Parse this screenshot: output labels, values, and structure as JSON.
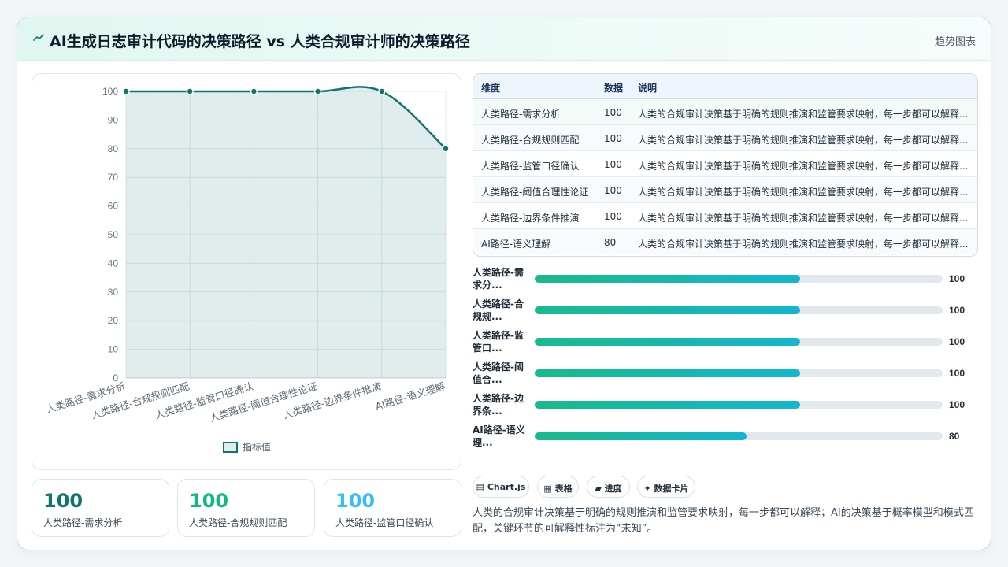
{
  "header": {
    "title": "AI生成日志审计代码的决策路径 vs 人类合规审计师的决策路径",
    "tag": "趋势图表",
    "icon": "sparkline-icon"
  },
  "colors": {
    "accent": "#0f766e",
    "accent_green": "#10b981",
    "accent_blue": "#38bdf8",
    "bar_start": "#1ab98a",
    "bar_end": "#13b6cf"
  },
  "chart_data": {
    "type": "line",
    "categories": [
      "人类路径-需求分析",
      "人类路径-合规规则匹配",
      "人类路径-监管口径确认",
      "人类路径-阈值合理性论证",
      "人类路径-边界条件推演",
      "AI路径-语义理解"
    ],
    "series": [
      {
        "name": "指标值",
        "values": [
          100,
          100,
          100,
          100,
          100,
          80
        ]
      }
    ],
    "ylim": [
      0,
      100
    ],
    "yticks": [
      0,
      10,
      20,
      30,
      40,
      50,
      60,
      70,
      80,
      90,
      100
    ],
    "fill": true,
    "grid": true,
    "legend": "bottom"
  },
  "table": {
    "headers": [
      "维度",
      "数据",
      "说明"
    ],
    "rows": [
      {
        "dim": "人类路径-需求分析",
        "value": "100",
        "note": "人类的合规审计决策基于明确的规则推演和监管要求映射，每一步都可以解释..."
      },
      {
        "dim": "人类路径-合规规则匹配",
        "value": "100",
        "note": "人类的合规审计决策基于明确的规则推演和监管要求映射，每一步都可以解释..."
      },
      {
        "dim": "人类路径-监管口径确认",
        "value": "100",
        "note": "人类的合规审计决策基于明确的规则推演和监管要求映射，每一步都可以解释..."
      },
      {
        "dim": "人类路径-阈值合理性论证",
        "value": "100",
        "note": "人类的合规审计决策基于明确的规则推演和监管要求映射，每一步都可以解释..."
      },
      {
        "dim": "人类路径-边界条件推演",
        "value": "100",
        "note": "人类的合规审计决策基于明确的规则推演和监管要求映射，每一步都可以解释..."
      },
      {
        "dim": "AI路径-语义理解",
        "value": "80",
        "note": "人类的合规审计决策基于明确的规则推演和监管要求映射，每一步都可以解释..."
      }
    ]
  },
  "progress": [
    {
      "label": "人类路径-需求分...",
      "value": 100,
      "fraction": 0.65
    },
    {
      "label": "人类路径-合规规...",
      "value": 100,
      "fraction": 0.65
    },
    {
      "label": "人类路径-监管口...",
      "value": 100,
      "fraction": 0.65
    },
    {
      "label": "人类路径-阈值合...",
      "value": 100,
      "fraction": 0.65
    },
    {
      "label": "人类路径-边界条...",
      "value": 100,
      "fraction": 0.65
    },
    {
      "label": "AI路径-语义理...",
      "value": 80,
      "fraction": 0.52
    }
  ],
  "kpis": [
    {
      "value": "100",
      "label": "人类路径-需求分析",
      "color": "#0f766e"
    },
    {
      "value": "100",
      "label": "人类路径-合规规则匹配",
      "color": "#10b981"
    },
    {
      "value": "100",
      "label": "人类路径-监管口径确认",
      "color": "#38bdf8"
    }
  ],
  "chips": [
    {
      "label": "Chart.js",
      "icon": "chart-icon",
      "glyph": "▤"
    },
    {
      "label": "表格",
      "icon": "table-icon",
      "glyph": "▦"
    },
    {
      "label": "进度",
      "icon": "progress-icon",
      "glyph": "▰"
    },
    {
      "label": "数据卡片",
      "icon": "sparkle-icon",
      "glyph": "✦"
    }
  ],
  "summary": "人类的合规审计决策基于明确的规则推演和监管要求映射，每一步都可以解释；AI的决策基于概率模型和模式匹配，关键环节的可解释性标注为“未知”。"
}
